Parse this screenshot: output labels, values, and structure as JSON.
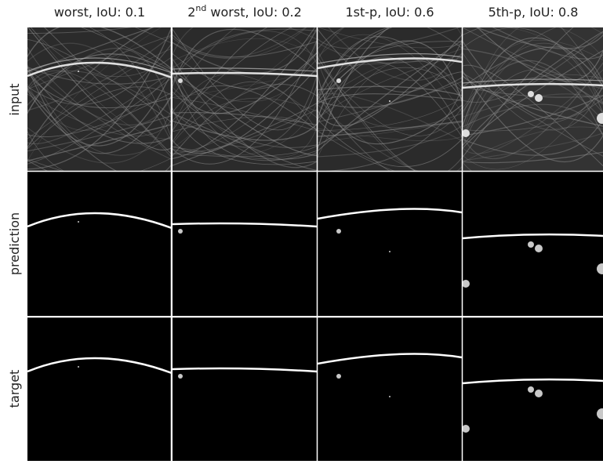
{
  "columns": [
    {
      "label": "worst, IoU: 0.1"
    },
    {
      "label_parts": [
        "2",
        "nd",
        " worst, IoU: 0.2"
      ]
    },
    {
      "label": "1st-p, IoU: 0.6"
    },
    {
      "label": "5th-p, IoU: 0.8"
    }
  ],
  "rows": [
    {
      "label": "input"
    },
    {
      "label": "prediction"
    },
    {
      "label": "target"
    }
  ]
}
